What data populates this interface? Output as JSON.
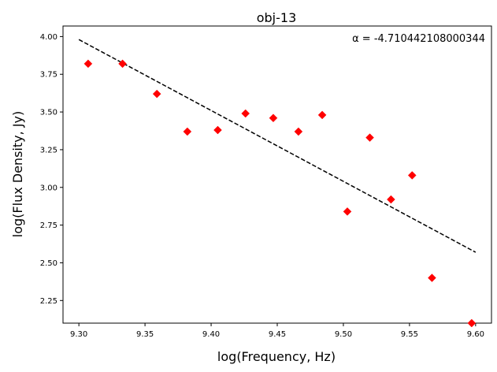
{
  "chart_data": {
    "type": "scatter",
    "title": "obj-13",
    "xlabel": "log(Frequency, Hz)",
    "ylabel": "log(Flux Density, Jy)",
    "annotation": "α  =  -4.710442108000344",
    "xlim": [
      9.288,
      9.612
    ],
    "ylim": [
      2.1,
      4.07
    ],
    "x_ticks": [
      9.3,
      9.35,
      9.4,
      9.45,
      9.5,
      9.55,
      9.6
    ],
    "x_tick_labels": [
      "9.30",
      "9.35",
      "9.40",
      "9.45",
      "9.50",
      "9.55",
      "9.60"
    ],
    "y_ticks": [
      2.25,
      2.5,
      2.75,
      3.0,
      3.25,
      3.5,
      3.75,
      4.0
    ],
    "y_tick_labels": [
      "2.25",
      "2.50",
      "2.75",
      "3.00",
      "3.25",
      "3.50",
      "3.75",
      "4.00"
    ],
    "grid": false,
    "series": [
      {
        "marker": "diamond",
        "color": "#ff0000",
        "x": [
          9.307,
          9.333,
          9.359,
          9.382,
          9.405,
          9.426,
          9.447,
          9.466,
          9.484,
          9.503,
          9.52,
          9.536,
          9.552,
          9.567,
          9.597
        ],
        "y": [
          3.82,
          3.82,
          3.62,
          3.37,
          3.38,
          3.49,
          3.46,
          3.37,
          3.48,
          2.84,
          3.33,
          2.92,
          3.08,
          2.4,
          2.1
        ]
      }
    ],
    "fit_line": {
      "style": "dashed",
      "color": "#000000",
      "x": [
        9.3,
        9.6
      ],
      "y": [
        3.98,
        2.57
      ]
    }
  }
}
